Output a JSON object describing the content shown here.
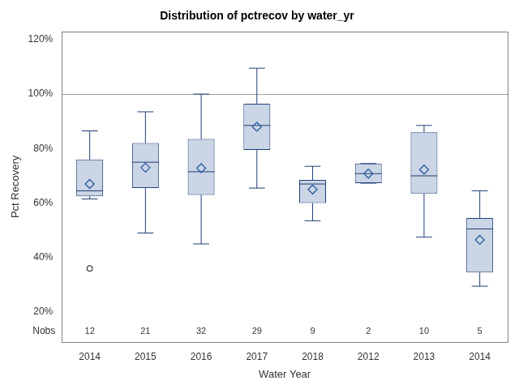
{
  "chart_data": {
    "type": "box",
    "title": "Distribution of pctrecov by water_yr",
    "x_label": "Water Year",
    "y_label": "Pct Recovery",
    "categories": [
      "2014",
      "2015",
      "2016",
      "2017",
      "2018",
      "2012",
      "2013",
      "2014"
    ],
    "whisker_low": [
      61.5,
      49,
      45,
      65.5,
      53.5,
      67.3,
      47.5,
      29.5
    ],
    "q1": [
      62.5,
      65.5,
      63,
      79.5,
      60,
      67.3,
      63.5,
      34.5
    ],
    "median": [
      64.5,
      75,
      71.5,
      88.5,
      67,
      70.8,
      70,
      50.5
    ],
    "q3": [
      76,
      82,
      83.5,
      96.5,
      68.5,
      74.5,
      86,
      54.5
    ],
    "whisker_high": [
      86.5,
      93.5,
      100,
      109.5,
      73.5,
      74.5,
      88.5,
      64.5
    ],
    "mean": [
      67,
      73,
      72.8,
      88,
      65,
      70.8,
      72.3,
      46.5
    ],
    "outliers": [
      [
        36
      ],
      [],
      [],
      [],
      [],
      [],
      [],
      []
    ],
    "nobs_label": "Nobs",
    "nobs": [
      12,
      21,
      32,
      29,
      9,
      2,
      10,
      5
    ],
    "reference_line": 100,
    "ylim": [
      9,
      123
    ],
    "yticks": [
      {
        "value": 20,
        "label": "20%"
      },
      {
        "value": 40,
        "label": "40%"
      },
      {
        "value": 60,
        "label": "60%"
      },
      {
        "value": 80,
        "label": "80%"
      },
      {
        "value": 100,
        "label": "100%"
      },
      {
        "value": 120,
        "label": "120%"
      }
    ],
    "grid": false,
    "color": "#cad5e5"
  }
}
